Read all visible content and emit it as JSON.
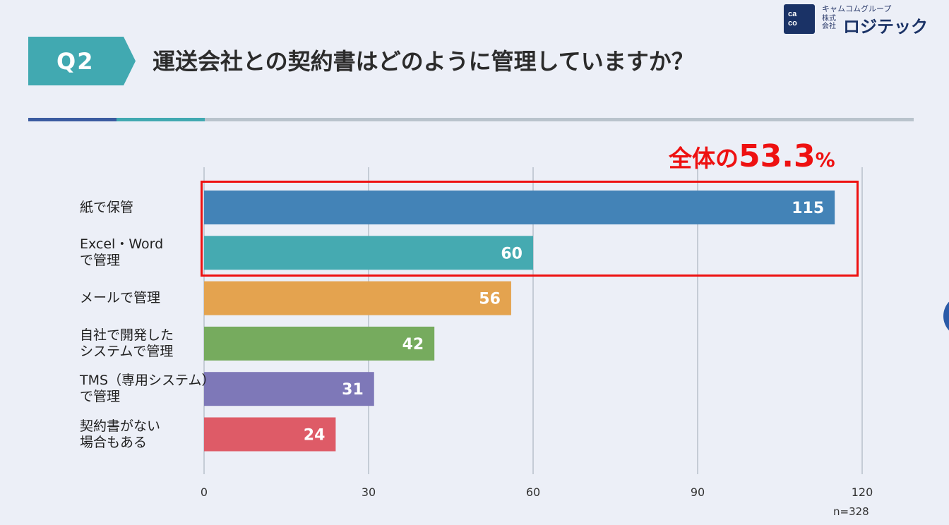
{
  "question": {
    "badge": "Q2",
    "text": "運送会社との契約書はどのように管理していますか？"
  },
  "logo": {
    "box_line1": "ca",
    "box_line2": "co",
    "group": "キャムコムグループ",
    "kabushiki_1": "株式",
    "kabushiki_2": "会社",
    "name": "ロジテック"
  },
  "callout": {
    "prefix": "全体の",
    "value": "53.3",
    "unit": "%"
  },
  "colors": {
    "accent": "#41a9b1",
    "highlight": "#ee1111",
    "divider": [
      "#3b5ba0",
      "#41a9b1",
      "#b9c3cc"
    ]
  },
  "chart_data": {
    "type": "bar",
    "orientation": "horizontal",
    "categories": [
      [
        "紙で保管"
      ],
      [
        "Excel・Word",
        "で管理"
      ],
      [
        "メールで管理"
      ],
      [
        "自社で開発した",
        "システムで管理"
      ],
      [
        "TMS（専用システム）",
        "で管理"
      ],
      [
        "契約書がない",
        "場合もある"
      ]
    ],
    "values": [
      115,
      60,
      56,
      42,
      31,
      24
    ],
    "bar_colors": [
      "#4383b7",
      "#45aab1",
      "#e4a34f",
      "#76ab5e",
      "#7e78b8",
      "#de5b67"
    ],
    "xlim": [
      0,
      120
    ],
    "xticks": [
      0,
      30,
      60,
      90,
      120
    ],
    "grid": true,
    "note": "n=328"
  }
}
